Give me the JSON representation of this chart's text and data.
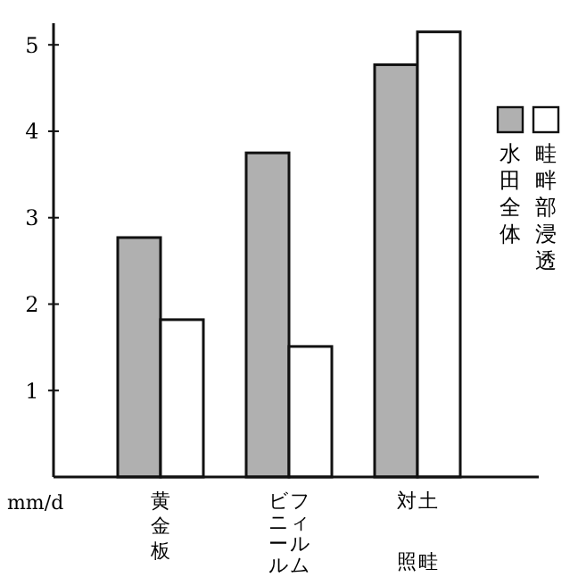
{
  "chart_data": {
    "type": "bar",
    "ylabel": "mm/d",
    "categories": [
      "黄金板",
      "ビニールフィルム",
      "対照土畦"
    ],
    "series": [
      {
        "name": "水田全体",
        "color": "#b0b0b0",
        "values": [
          2.77,
          3.75,
          4.77
        ]
      },
      {
        "name": "畦畔部浸透",
        "color": "#ffffff",
        "values": [
          1.82,
          1.51,
          5.15
        ]
      }
    ],
    "ylim": [
      0,
      5.25
    ],
    "yticks": [
      {
        "value": 0,
        "label": null
      },
      1,
      2,
      3,
      4,
      5
    ],
    "grid": false,
    "legend": "right"
  }
}
